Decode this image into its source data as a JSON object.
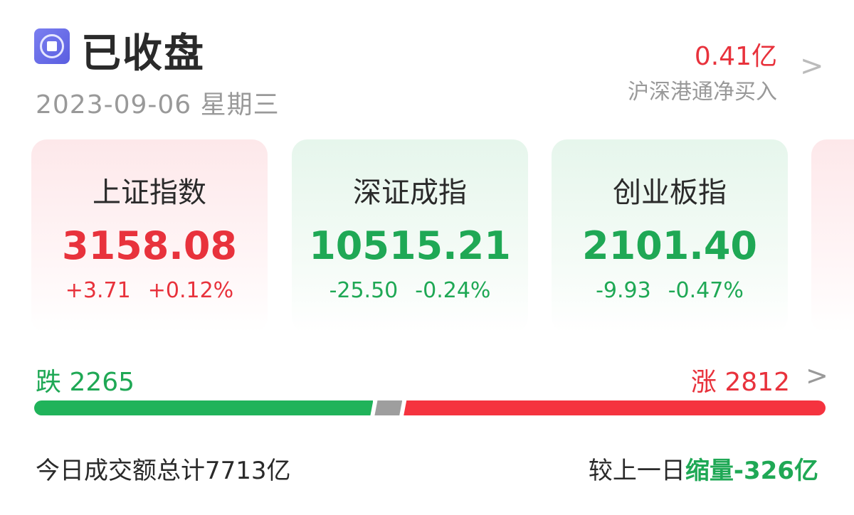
{
  "header": {
    "status": "已收盘",
    "date": "2023-09-06",
    "weekday": "星期三",
    "status_icon": "stop-circle-icon"
  },
  "netbuy": {
    "value": "0.41亿",
    "label": "沪深港通净买入"
  },
  "indices": [
    {
      "name": "上证指数",
      "value": "3158.08",
      "change": "+3.71",
      "pct": "+0.12%",
      "trend": "up"
    },
    {
      "name": "深证成指",
      "value": "10515.21",
      "change": "-25.50",
      "pct": "-0.24%",
      "trend": "down"
    },
    {
      "name": "创业板指",
      "value": "2101.40",
      "change": "-9.93",
      "pct": "-0.47%",
      "trend": "down"
    }
  ],
  "breadth": {
    "fall_label": "跌",
    "fall": "2265",
    "rise_label": "涨",
    "rise": "2812",
    "fall_fraction": 0.43,
    "flat_fraction": 0.035,
    "rise_fraction": 0.535
  },
  "turnover": {
    "label": "今日成交额总计",
    "value": "7713亿"
  },
  "compare": {
    "label": "较上一日",
    "change_label": "缩量",
    "change": "-326亿"
  },
  "colors": {
    "up": "#e8323c",
    "down": "#1fa855",
    "flat": "#9e9e9e",
    "accent": "#6468e8"
  }
}
